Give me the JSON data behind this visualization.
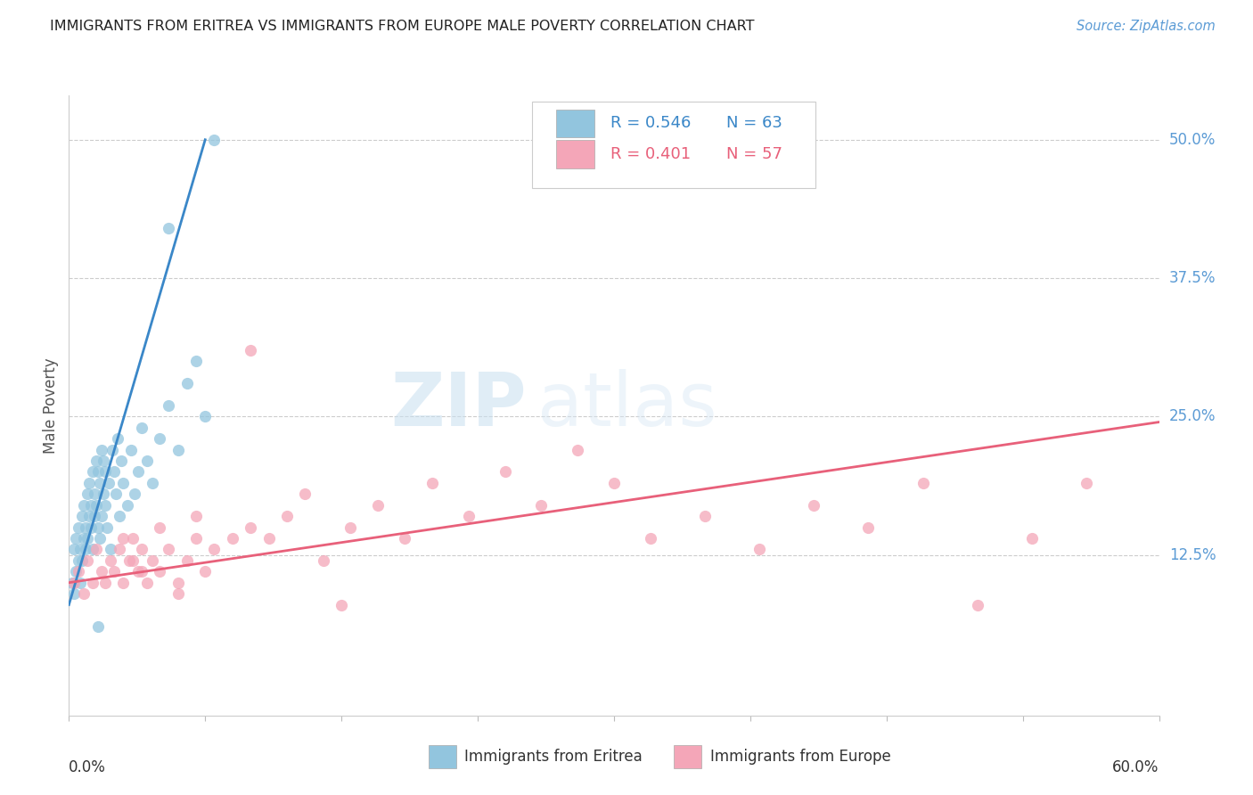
{
  "title": "IMMIGRANTS FROM ERITREA VS IMMIGRANTS FROM EUROPE MALE POVERTY CORRELATION CHART",
  "source": "Source: ZipAtlas.com",
  "ylabel": "Male Poverty",
  "xlim": [
    0.0,
    0.6
  ],
  "ylim": [
    -0.02,
    0.54
  ],
  "legend_R1": "R = 0.546",
  "legend_N1": "N = 63",
  "legend_R2": "R = 0.401",
  "legend_N2": "N = 57",
  "legend_label1": "Immigrants from Eritrea",
  "legend_label2": "Immigrants from Europe",
  "color1": "#92c5de",
  "color2": "#f4a6b8",
  "line_color1": "#3a87c8",
  "line_color2": "#e8607a",
  "watermark_zip": "ZIP",
  "watermark_atlas": "atlas",
  "background_color": "#ffffff",
  "ytick_vals": [
    0.0,
    0.125,
    0.25,
    0.375,
    0.5
  ],
  "ytick_labels": [
    "0.0%",
    "12.5%",
    "25.0%",
    "37.5%",
    "50.0%"
  ],
  "scatter1_x": [
    0.002,
    0.003,
    0.003,
    0.004,
    0.004,
    0.005,
    0.005,
    0.006,
    0.006,
    0.007,
    0.007,
    0.008,
    0.008,
    0.009,
    0.009,
    0.01,
    0.01,
    0.011,
    0.011,
    0.012,
    0.012,
    0.013,
    0.013,
    0.014,
    0.014,
    0.015,
    0.015,
    0.016,
    0.016,
    0.017,
    0.017,
    0.018,
    0.018,
    0.019,
    0.019,
    0.02,
    0.02,
    0.021,
    0.022,
    0.023,
    0.024,
    0.025,
    0.026,
    0.027,
    0.028,
    0.029,
    0.03,
    0.032,
    0.034,
    0.036,
    0.038,
    0.04,
    0.043,
    0.046,
    0.05,
    0.055,
    0.06,
    0.065,
    0.07,
    0.075,
    0.08,
    0.055,
    0.016
  ],
  "scatter1_y": [
    0.1,
    0.09,
    0.13,
    0.11,
    0.14,
    0.12,
    0.15,
    0.1,
    0.13,
    0.12,
    0.16,
    0.14,
    0.17,
    0.13,
    0.15,
    0.14,
    0.18,
    0.16,
    0.19,
    0.15,
    0.17,
    0.13,
    0.2,
    0.16,
    0.18,
    0.17,
    0.21,
    0.15,
    0.2,
    0.14,
    0.19,
    0.16,
    0.22,
    0.18,
    0.21,
    0.17,
    0.2,
    0.15,
    0.19,
    0.13,
    0.22,
    0.2,
    0.18,
    0.23,
    0.16,
    0.21,
    0.19,
    0.17,
    0.22,
    0.18,
    0.2,
    0.24,
    0.21,
    0.19,
    0.23,
    0.26,
    0.22,
    0.28,
    0.3,
    0.25,
    0.5,
    0.42,
    0.06
  ],
  "scatter2_x": [
    0.003,
    0.005,
    0.008,
    0.01,
    0.013,
    0.015,
    0.018,
    0.02,
    0.023,
    0.025,
    0.028,
    0.03,
    0.033,
    0.035,
    0.038,
    0.04,
    0.043,
    0.046,
    0.05,
    0.055,
    0.06,
    0.065,
    0.07,
    0.075,
    0.08,
    0.09,
    0.1,
    0.11,
    0.12,
    0.13,
    0.14,
    0.155,
    0.17,
    0.185,
    0.2,
    0.22,
    0.24,
    0.26,
    0.28,
    0.3,
    0.32,
    0.35,
    0.38,
    0.41,
    0.44,
    0.47,
    0.5,
    0.53,
    0.56,
    0.03,
    0.035,
    0.04,
    0.05,
    0.06,
    0.07,
    0.1,
    0.15
  ],
  "scatter2_y": [
    0.1,
    0.11,
    0.09,
    0.12,
    0.1,
    0.13,
    0.11,
    0.1,
    0.12,
    0.11,
    0.13,
    0.1,
    0.12,
    0.14,
    0.11,
    0.13,
    0.1,
    0.12,
    0.11,
    0.13,
    0.1,
    0.12,
    0.14,
    0.11,
    0.13,
    0.14,
    0.15,
    0.14,
    0.16,
    0.18,
    0.12,
    0.15,
    0.17,
    0.14,
    0.19,
    0.16,
    0.2,
    0.17,
    0.22,
    0.19,
    0.14,
    0.16,
    0.13,
    0.17,
    0.15,
    0.19,
    0.08,
    0.14,
    0.19,
    0.14,
    0.12,
    0.11,
    0.15,
    0.09,
    0.16,
    0.31,
    0.08
  ],
  "line1_x0": 0.0,
  "line1_y0": 0.08,
  "line1_x1": 0.075,
  "line1_y1": 0.5,
  "line2_x0": 0.0,
  "line2_y0": 0.1,
  "line2_x1": 0.6,
  "line2_y1": 0.245
}
